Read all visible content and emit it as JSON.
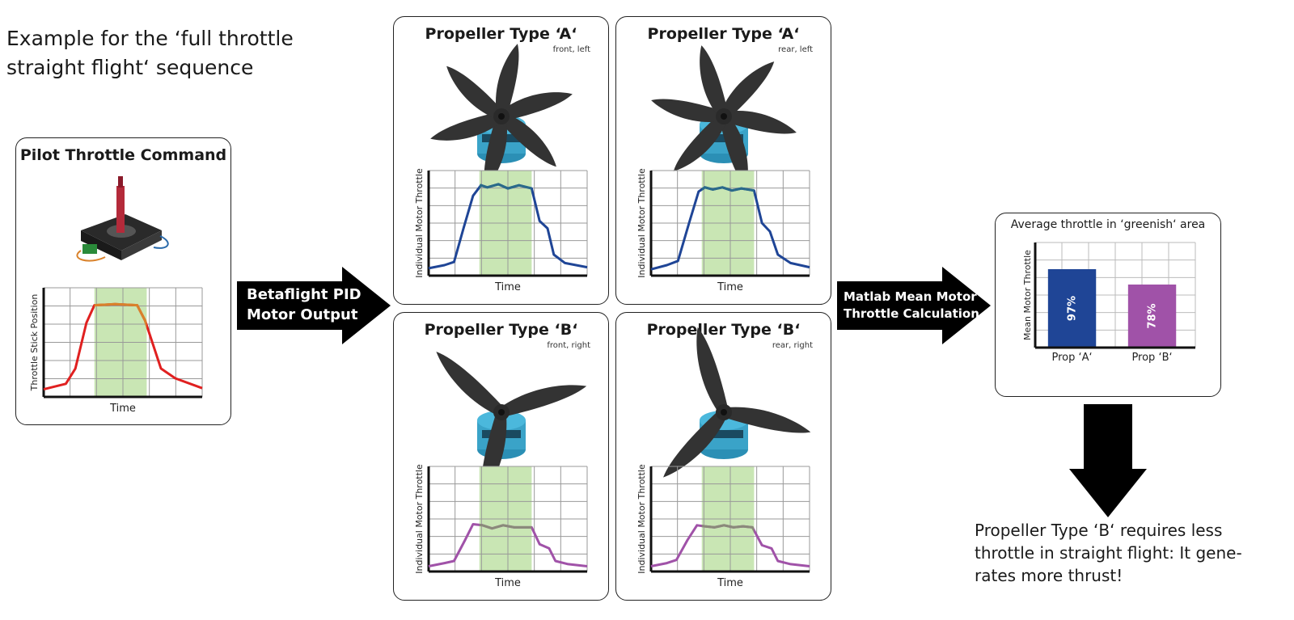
{
  "title": [
    "Example for the ‘full throttle",
    "straight flight‘ sequence"
  ],
  "pilot": {
    "title": "Pilot Throttle Command",
    "chart": {
      "xlabel": "Time",
      "ylabel": "Throttle Stick Position",
      "line_color": "#e02020",
      "highlight_line_color": "#d9822b",
      "points": [
        [
          0,
          0.07
        ],
        [
          0.14,
          0.12
        ],
        [
          0.2,
          0.26
        ],
        [
          0.27,
          0.68
        ],
        [
          0.32,
          0.84
        ],
        [
          0.45,
          0.85
        ],
        [
          0.59,
          0.84
        ],
        [
          0.64,
          0.7
        ],
        [
          0.74,
          0.26
        ],
        [
          0.83,
          0.17
        ],
        [
          1,
          0.08
        ]
      ]
    }
  },
  "arrow1": {
    "lines": [
      "Betaflight PID",
      "Motor Output"
    ]
  },
  "arrow2": {
    "lines": [
      "Matlab Mean Motor",
      "Throttle Calculation"
    ]
  },
  "panels": [
    {
      "title": "Propeller Type  ‘A‘",
      "sub": "front, left",
      "prop": "six-blade",
      "xlabel": "Time",
      "ylabel": "Individual Motor Throttle",
      "color": "#1f4596",
      "highlight_color": "#2a6a8a",
      "points": [
        [
          0,
          0.07
        ],
        [
          0.1,
          0.1
        ],
        [
          0.16,
          0.13
        ],
        [
          0.22,
          0.45
        ],
        [
          0.28,
          0.76
        ],
        [
          0.33,
          0.86
        ],
        [
          0.37,
          0.84
        ],
        [
          0.44,
          0.87
        ],
        [
          0.5,
          0.83
        ],
        [
          0.57,
          0.86
        ],
        [
          0.65,
          0.83
        ],
        [
          0.7,
          0.52
        ],
        [
          0.75,
          0.45
        ],
        [
          0.79,
          0.2
        ],
        [
          0.86,
          0.12
        ],
        [
          1,
          0.08
        ]
      ]
    },
    {
      "title": "Propeller Type  ‘A‘",
      "sub": "rear, left",
      "prop": "six-blade",
      "xlabel": "Time",
      "ylabel": "Individual Motor Throttle",
      "color": "#1f4596",
      "highlight_color": "#2a6a8a",
      "points": [
        [
          0,
          0.06
        ],
        [
          0.1,
          0.1
        ],
        [
          0.17,
          0.14
        ],
        [
          0.24,
          0.5
        ],
        [
          0.3,
          0.8
        ],
        [
          0.34,
          0.84
        ],
        [
          0.39,
          0.82
        ],
        [
          0.45,
          0.84
        ],
        [
          0.51,
          0.81
        ],
        [
          0.57,
          0.83
        ],
        [
          0.65,
          0.81
        ],
        [
          0.7,
          0.5
        ],
        [
          0.75,
          0.42
        ],
        [
          0.8,
          0.2
        ],
        [
          0.88,
          0.12
        ],
        [
          1,
          0.08
        ]
      ]
    },
    {
      "title": "Propeller Type  ‘B‘",
      "sub": "front, right",
      "prop": "three-blade",
      "xlabel": "Time",
      "ylabel": "Individual Motor Throttle",
      "color": "#a052a8",
      "highlight_color": "#8a8a7a",
      "points": [
        [
          0,
          0.05
        ],
        [
          0.1,
          0.08
        ],
        [
          0.16,
          0.1
        ],
        [
          0.23,
          0.3
        ],
        [
          0.28,
          0.45
        ],
        [
          0.34,
          0.44
        ],
        [
          0.4,
          0.41
        ],
        [
          0.47,
          0.44
        ],
        [
          0.54,
          0.42
        ],
        [
          0.6,
          0.42
        ],
        [
          0.65,
          0.42
        ],
        [
          0.7,
          0.26
        ],
        [
          0.76,
          0.22
        ],
        [
          0.8,
          0.1
        ],
        [
          0.88,
          0.07
        ],
        [
          1,
          0.05
        ]
      ]
    },
    {
      "title": "Propeller Type  ‘B‘",
      "sub": "rear, right",
      "prop": "three-blade",
      "xlabel": "Time",
      "ylabel": "Individual Motor Throttle",
      "color": "#a052a8",
      "highlight_color": "#8a8a7a",
      "points": [
        [
          0,
          0.05
        ],
        [
          0.1,
          0.08
        ],
        [
          0.16,
          0.11
        ],
        [
          0.23,
          0.3
        ],
        [
          0.29,
          0.44
        ],
        [
          0.34,
          0.43
        ],
        [
          0.4,
          0.42
        ],
        [
          0.46,
          0.44
        ],
        [
          0.52,
          0.42
        ],
        [
          0.58,
          0.43
        ],
        [
          0.64,
          0.42
        ],
        [
          0.7,
          0.25
        ],
        [
          0.76,
          0.22
        ],
        [
          0.8,
          0.1
        ],
        [
          0.88,
          0.07
        ],
        [
          1,
          0.05
        ]
      ]
    }
  ],
  "average": {
    "title": "Average throttle in ‘greenish‘ area",
    "ylabel": "Mean Motor Throttle",
    "bars": [
      {
        "label": "Prop ‘A‘",
        "value": 97,
        "value_label": "97%",
        "color": "#1f4596"
      },
      {
        "label": "Prop ‘B‘",
        "value": 78,
        "value_label": "78%",
        "color": "#a052a8"
      }
    ]
  },
  "conclusion": [
    "Propeller Type ‘B‘ requires less",
    "throttle in straight flight: It gene-",
    "rates more thrust!"
  ],
  "colors": {
    "highlight": "#c9e6b4",
    "grid": "#999999",
    "axis": "#111111",
    "arrow": "#000000"
  }
}
